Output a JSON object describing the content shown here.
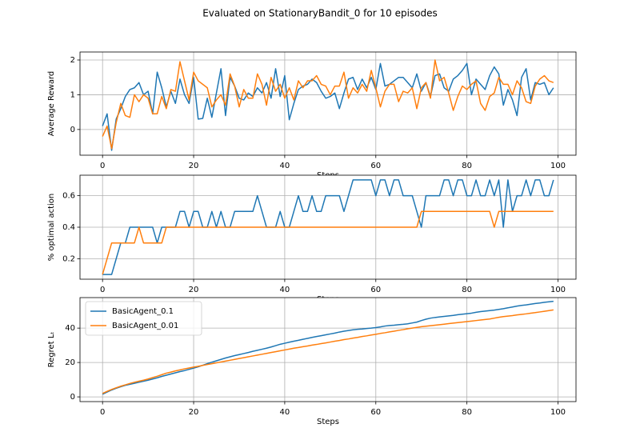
{
  "title": "Evaluated on StationaryBandit_0 for 10 episodes",
  "chart_data": [
    {
      "type": "line",
      "xlabel": "Steps",
      "ylabel": "Average Reward",
      "x": [
        0,
        1,
        2,
        3,
        4,
        5,
        6,
        7,
        8,
        9,
        10,
        11,
        12,
        13,
        14,
        15,
        16,
        17,
        18,
        19,
        20,
        21,
        22,
        23,
        24,
        25,
        26,
        27,
        28,
        29,
        30,
        31,
        32,
        33,
        34,
        35,
        36,
        37,
        38,
        39,
        40,
        41,
        42,
        43,
        44,
        45,
        46,
        47,
        48,
        49,
        50,
        51,
        52,
        53,
        54,
        55,
        56,
        57,
        58,
        59,
        60,
        61,
        62,
        63,
        64,
        65,
        66,
        67,
        68,
        69,
        70,
        71,
        72,
        73,
        74,
        75,
        76,
        77,
        78,
        79,
        80,
        81,
        82,
        83,
        84,
        85,
        86,
        87,
        88,
        89,
        90,
        91,
        92,
        93,
        94,
        95,
        96,
        97,
        98,
        99
      ],
      "series": [
        {
          "color": "#1f77b4",
          "values": [
            0.1,
            0.45,
            -0.6,
            0.3,
            0.6,
            0.95,
            1.15,
            1.2,
            1.35,
            1.0,
            1.1,
            0.45,
            1.65,
            1.2,
            0.65,
            1.1,
            0.75,
            1.45,
            1.0,
            0.75,
            1.5,
            0.3,
            0.32,
            0.9,
            0.35,
            1.05,
            1.75,
            0.4,
            1.5,
            1.25,
            0.9,
            0.85,
            1.05,
            0.95,
            1.2,
            1.05,
            1.35,
            0.9,
            1.75,
            0.95,
            1.55,
            0.28,
            0.75,
            1.15,
            1.25,
            1.3,
            1.45,
            1.35,
            1.1,
            0.9,
            0.95,
            1.05,
            0.6,
            1.05,
            1.45,
            1.5,
            1.15,
            1.45,
            1.2,
            1.5,
            1.15,
            1.9,
            1.25,
            1.3,
            1.4,
            1.5,
            1.5,
            1.35,
            1.2,
            1.6,
            1.1,
            1.35,
            0.95,
            1.55,
            1.6,
            1.2,
            1.1,
            1.45,
            1.55,
            1.7,
            1.9,
            1.0,
            1.45,
            1.3,
            1.15,
            1.55,
            1.8,
            1.6,
            0.7,
            1.15,
            0.85,
            0.4,
            1.5,
            1.75,
            0.85,
            1.35,
            1.3,
            1.35,
            1.0,
            1.2
          ]
        },
        {
          "color": "#ff7f0e",
          "values": [
            -0.2,
            0.1,
            -0.55,
            0.2,
            0.75,
            0.4,
            0.35,
            1.0,
            0.8,
            1.0,
            0.9,
            0.45,
            0.45,
            0.95,
            0.6,
            1.15,
            1.1,
            1.95,
            1.4,
            0.85,
            1.65,
            1.4,
            1.3,
            1.2,
            0.65,
            0.85,
            1.0,
            0.7,
            1.6,
            1.25,
            0.65,
            1.15,
            0.9,
            0.9,
            1.6,
            1.3,
            0.7,
            1.5,
            1.1,
            1.3,
            0.9,
            1.2,
            0.85,
            1.4,
            1.2,
            1.4,
            1.4,
            1.55,
            1.3,
            1.25,
            1.0,
            1.25,
            1.25,
            1.65,
            0.9,
            1.2,
            1.05,
            1.3,
            1.1,
            1.7,
            1.2,
            0.65,
            1.1,
            1.3,
            1.3,
            0.8,
            1.1,
            1.05,
            1.2,
            0.6,
            1.2,
            1.35,
            0.9,
            2.0,
            1.4,
            1.5,
            1.05,
            0.55,
            0.95,
            1.25,
            1.15,
            1.3,
            1.4,
            0.75,
            0.55,
            0.95,
            1.05,
            1.5,
            1.3,
            1.3,
            1.0,
            1.4,
            1.2,
            0.8,
            0.75,
            1.25,
            1.45,
            1.55,
            1.4,
            1.35
          ]
        }
      ],
      "xlim": [
        -4.95,
        103.95
      ],
      "xticks": [
        0,
        20,
        40,
        60,
        80,
        100
      ],
      "ylim": [
        -0.74,
        2.23
      ],
      "yticks": [
        0,
        1,
        2
      ],
      "grid": true
    },
    {
      "type": "line",
      "xlabel": "Steps",
      "ylabel": "% optimal action",
      "x": [
        0,
        1,
        2,
        3,
        4,
        5,
        6,
        7,
        8,
        9,
        10,
        11,
        12,
        13,
        14,
        15,
        16,
        17,
        18,
        19,
        20,
        21,
        22,
        23,
        24,
        25,
        26,
        27,
        28,
        29,
        30,
        31,
        32,
        33,
        34,
        35,
        36,
        37,
        38,
        39,
        40,
        41,
        42,
        43,
        44,
        45,
        46,
        47,
        48,
        49,
        50,
        51,
        52,
        53,
        54,
        55,
        56,
        57,
        58,
        59,
        60,
        61,
        62,
        63,
        64,
        65,
        66,
        67,
        68,
        69,
        70,
        71,
        72,
        73,
        74,
        75,
        76,
        77,
        78,
        79,
        80,
        81,
        82,
        83,
        84,
        85,
        86,
        87,
        88,
        89,
        90,
        91,
        92,
        93,
        94,
        95,
        96,
        97,
        98,
        99
      ],
      "series": [
        {
          "color": "#1f77b4",
          "values": [
            0.1,
            0.1,
            0.1,
            0.2,
            0.3,
            0.3,
            0.4,
            0.4,
            0.4,
            0.4,
            0.4,
            0.4,
            0.3,
            0.4,
            0.4,
            0.4,
            0.4,
            0.5,
            0.5,
            0.4,
            0.5,
            0.5,
            0.4,
            0.4,
            0.5,
            0.4,
            0.5,
            0.4,
            0.4,
            0.5,
            0.5,
            0.5,
            0.5,
            0.5,
            0.6,
            0.5,
            0.4,
            0.4,
            0.4,
            0.5,
            0.4,
            0.4,
            0.5,
            0.6,
            0.5,
            0.5,
            0.6,
            0.5,
            0.5,
            0.6,
            0.6,
            0.6,
            0.6,
            0.5,
            0.6,
            0.7,
            0.7,
            0.7,
            0.7,
            0.7,
            0.6,
            0.7,
            0.7,
            0.6,
            0.7,
            0.7,
            0.6,
            0.6,
            0.6,
            0.5,
            0.4,
            0.6,
            0.6,
            0.6,
            0.6,
            0.7,
            0.7,
            0.6,
            0.7,
            0.7,
            0.6,
            0.6,
            0.7,
            0.6,
            0.6,
            0.7,
            0.6,
            0.7,
            0.4,
            0.7,
            0.5,
            0.6,
            0.6,
            0.7,
            0.6,
            0.7,
            0.7,
            0.6,
            0.6,
            0.7
          ]
        },
        {
          "color": "#ff7f0e",
          "values": [
            0.1,
            0.2,
            0.3,
            0.3,
            0.3,
            0.3,
            0.3,
            0.3,
            0.4,
            0.3,
            0.3,
            0.3,
            0.3,
            0.3,
            0.4,
            0.4,
            0.4,
            0.4,
            0.4,
            0.4,
            0.4,
            0.4,
            0.4,
            0.4,
            0.4,
            0.4,
            0.4,
            0.4,
            0.4,
            0.4,
            0.4,
            0.4,
            0.4,
            0.4,
            0.4,
            0.4,
            0.4,
            0.4,
            0.4,
            0.4,
            0.4,
            0.4,
            0.4,
            0.4,
            0.4,
            0.4,
            0.4,
            0.4,
            0.4,
            0.4,
            0.4,
            0.4,
            0.4,
            0.4,
            0.4,
            0.4,
            0.4,
            0.4,
            0.4,
            0.4,
            0.4,
            0.4,
            0.4,
            0.4,
            0.4,
            0.4,
            0.4,
            0.4,
            0.4,
            0.4,
            0.5,
            0.5,
            0.5,
            0.5,
            0.5,
            0.5,
            0.5,
            0.5,
            0.5,
            0.5,
            0.5,
            0.5,
            0.5,
            0.5,
            0.5,
            0.5,
            0.4,
            0.5,
            0.5,
            0.5,
            0.5,
            0.5,
            0.5,
            0.5,
            0.5,
            0.5,
            0.5,
            0.5,
            0.5,
            0.5
          ]
        }
      ],
      "xlim": [
        -4.95,
        103.95
      ],
      "xticks": [
        0,
        20,
        40,
        60,
        80,
        100
      ],
      "ylim": [
        0.07,
        0.73
      ],
      "yticks": [
        0.2,
        0.4,
        0.6
      ],
      "grid": true
    },
    {
      "type": "line",
      "xlabel": "Steps",
      "ylabel": "Regret Lₜ",
      "x": [
        0,
        1,
        2,
        3,
        4,
        5,
        6,
        7,
        8,
        9,
        10,
        11,
        12,
        13,
        14,
        15,
        16,
        17,
        18,
        19,
        20,
        21,
        22,
        23,
        24,
        25,
        26,
        27,
        28,
        29,
        30,
        31,
        32,
        33,
        34,
        35,
        36,
        37,
        38,
        39,
        40,
        41,
        42,
        43,
        44,
        45,
        46,
        47,
        48,
        49,
        50,
        51,
        52,
        53,
        54,
        55,
        56,
        57,
        58,
        59,
        60,
        61,
        62,
        63,
        64,
        65,
        66,
        67,
        68,
        69,
        70,
        71,
        72,
        73,
        74,
        75,
        76,
        77,
        78,
        79,
        80,
        81,
        82,
        83,
        84,
        85,
        86,
        87,
        88,
        89,
        90,
        91,
        92,
        93,
        94,
        95,
        96,
        97,
        98,
        99
      ],
      "series": [
        {
          "name": "BasicAgent_0.1",
          "color": "#1f77b4",
          "values": [
            1.5,
            2.8,
            4.0,
            5.0,
            5.9,
            6.7,
            7.3,
            7.9,
            8.5,
            9.1,
            9.7,
            10.4,
            11.1,
            11.9,
            12.6,
            13.3,
            14.0,
            14.7,
            15.3,
            16.0,
            16.7,
            17.5,
            18.4,
            19.3,
            20.2,
            21.0,
            21.8,
            22.6,
            23.3,
            24.0,
            24.6,
            25.2,
            25.8,
            26.5,
            27.1,
            27.7,
            28.3,
            29.0,
            29.8,
            30.6,
            31.2,
            31.8,
            32.4,
            32.9,
            33.5,
            34.0,
            34.6,
            35.1,
            35.6,
            36.1,
            36.6,
            37.1,
            37.7,
            38.2,
            38.6,
            39.0,
            39.3,
            39.5,
            39.8,
            40.0,
            40.3,
            40.7,
            41.2,
            41.5,
            41.7,
            42.0,
            42.2,
            42.5,
            43.0,
            43.5,
            44.4,
            45.2,
            45.8,
            46.2,
            46.5,
            46.8,
            47.1,
            47.4,
            47.8,
            48.1,
            48.4,
            48.7,
            49.2,
            49.6,
            49.9,
            50.2,
            50.5,
            50.9,
            51.3,
            51.8,
            52.3,
            52.8,
            53.2,
            53.5,
            53.9,
            54.3,
            54.6,
            55.0,
            55.3,
            55.6
          ]
        },
        {
          "name": "BasicAgent_0.01",
          "color": "#ff7f0e",
          "values": [
            2.0,
            3.2,
            4.3,
            5.3,
            6.2,
            7.0,
            7.8,
            8.5,
            9.1,
            9.7,
            10.4,
            11.2,
            12.0,
            12.9,
            13.8,
            14.4,
            15.1,
            15.7,
            16.3,
            16.8,
            17.3,
            17.8,
            18.3,
            18.8,
            19.3,
            19.8,
            20.3,
            20.8,
            21.3,
            21.8,
            22.3,
            22.8,
            23.3,
            23.8,
            24.3,
            24.8,
            25.3,
            25.8,
            26.3,
            26.8,
            27.3,
            27.8,
            28.3,
            28.7,
            29.2,
            29.6,
            30.1,
            30.5,
            31.0,
            31.4,
            31.9,
            32.4,
            32.8,
            33.3,
            33.7,
            34.2,
            34.6,
            35.1,
            35.5,
            36.0,
            36.4,
            36.9,
            37.3,
            37.8,
            38.2,
            38.7,
            39.1,
            39.6,
            40.0,
            40.4,
            40.8,
            41.1,
            41.4,
            41.7,
            42.0,
            42.3,
            42.6,
            42.9,
            43.2,
            43.5,
            43.8,
            44.1,
            44.4,
            44.7,
            45.0,
            45.3,
            45.8,
            46.3,
            46.7,
            47.0,
            47.3,
            47.7,
            48.0,
            48.3,
            48.7,
            49.0,
            49.4,
            49.8,
            50.2,
            50.6
          ]
        }
      ],
      "xlim": [
        -4.95,
        103.95
      ],
      "xticks": [
        0,
        20,
        40,
        60,
        80,
        100
      ],
      "ylim": [
        -2.75,
        57.75
      ],
      "yticks": [
        0,
        20,
        40
      ],
      "grid": true,
      "legend": "upper left"
    }
  ]
}
